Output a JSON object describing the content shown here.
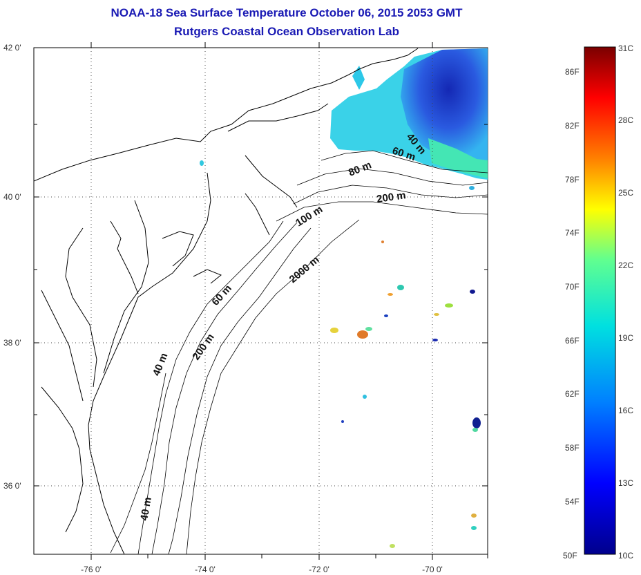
{
  "titles": {
    "line1": "NOAA-18 Sea Surface Temperature October 06, 2015 2053 GMT",
    "line2": "Rutgers Coastal Ocean Observation Lab"
  },
  "map": {
    "lat_labels": [
      "42 0'",
      "40 0'",
      "38 0'",
      "36 0'"
    ],
    "lon_labels": [
      "-76 0'",
      "-74 0'",
      "-72 0'",
      "-70 0'"
    ],
    "depth_labels": [
      "40 m",
      "60 m",
      "80 m",
      "200 m",
      "100 m",
      "2000 m",
      "60 m",
      "40 m",
      "200 m",
      "40 m"
    ]
  },
  "colorbar": {
    "fahrenheit_labels": [
      "86F",
      "82F",
      "78F",
      "74F",
      "70F",
      "66F",
      "62F",
      "58F",
      "54F",
      "50F"
    ],
    "celsius_labels": [
      "31C",
      "28C",
      "25C",
      "22C",
      "19C",
      "16C",
      "13C",
      "10C"
    ],
    "colors": [
      "#00008c",
      "#0000ff",
      "#0080ff",
      "#00e0e0",
      "#60ff90",
      "#ffff00",
      "#ff8000",
      "#ff0000",
      "#7a0000"
    ]
  }
}
